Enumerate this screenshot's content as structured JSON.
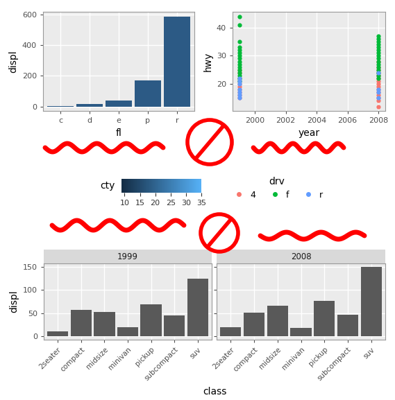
{
  "chart_data": [
    {
      "type": "bar",
      "x_label": "fl",
      "y_label": "displ",
      "categories": [
        "c",
        "d",
        "e",
        "p",
        "r"
      ],
      "values": [
        1.8,
        15,
        37,
        172,
        590
      ],
      "color": "#2C5A85",
      "ylim": [
        -29.5,
        619.5
      ],
      "yticks": [
        0,
        200,
        400,
        600
      ],
      "grid": true,
      "colorbar": {
        "title": "cty",
        "range": [
          9,
          35
        ],
        "ticks": [
          10,
          15,
          20,
          25,
          30,
          35
        ],
        "colors": [
          "#132B43",
          "#56B1F7"
        ]
      }
    },
    {
      "type": "scatter",
      "x_label": "year",
      "y_label": "hwy",
      "xlim": [
        1998.55,
        2008.45
      ],
      "xticks": [
        2000,
        2002,
        2004,
        2006,
        2008
      ],
      "ylim": [
        10.4,
        45.6
      ],
      "yticks": [
        20,
        30,
        40
      ],
      "grid": true,
      "legend": "center",
      "legend_title": "drv",
      "series": [
        {
          "name": "4",
          "color": "#F8766D",
          "marker": "circle",
          "x": [
            1999,
            1999,
            1999,
            1999,
            1999,
            1999,
            1999,
            1999,
            1999,
            1999,
            2008,
            2008,
            2008,
            2008,
            2008,
            2008,
            2008,
            2008,
            2008,
            2008,
            2008,
            2008,
            2008,
            2008,
            2008
          ],
          "values": [
            15,
            16,
            17,
            18,
            19,
            20,
            21,
            22,
            24,
            25,
            12,
            14,
            15,
            16,
            17,
            18,
            19,
            20,
            21,
            22,
            23,
            24,
            25,
            26,
            28
          ]
        },
        {
          "name": "f",
          "color": "#00BA38",
          "marker": "circle",
          "x": [
            1999,
            1999,
            1999,
            1999,
            1999,
            1999,
            1999,
            1999,
            1999,
            1999,
            1999,
            1999,
            1999,
            1999,
            1999,
            1999,
            2008,
            2008,
            2008,
            2008,
            2008,
            2008,
            2008,
            2008,
            2008,
            2008,
            2008,
            2008,
            2008,
            2008,
            2008,
            2008
          ],
          "values": [
            21,
            22,
            23,
            24,
            25,
            26,
            27,
            28,
            29,
            30,
            31,
            32,
            33,
            35,
            41,
            44,
            22,
            23,
            24,
            25,
            26,
            27,
            28,
            29,
            30,
            31,
            32,
            33,
            34,
            35,
            36,
            37
          ]
        },
        {
          "name": "r",
          "color": "#619CFF",
          "marker": "circle",
          "x": [
            1999,
            1999,
            1999,
            1999,
            1999,
            1999,
            1999,
            2008,
            2008,
            2008,
            2008
          ],
          "values": [
            15,
            16,
            17,
            18,
            20,
            21,
            22,
            15,
            17,
            18,
            24
          ]
        }
      ]
    },
    {
      "type": "bar",
      "x_label": "class",
      "y_label": "displ",
      "categories": [
        "2seater",
        "compact",
        "midsize",
        "minivan",
        "pickup",
        "subcompact",
        "suv"
      ],
      "color": "#595959",
      "ylim": [
        -7.5,
        157.5
      ],
      "yticks": [
        0,
        50,
        100,
        150
      ],
      "grid": true,
      "facets": [
        {
          "title": "1999",
          "values": [
            11,
            57,
            53,
            19,
            69,
            45,
            125
          ]
        },
        {
          "title": "2008",
          "values": [
            19,
            51,
            66,
            18,
            76,
            46,
            150
          ]
        }
      ]
    }
  ]
}
